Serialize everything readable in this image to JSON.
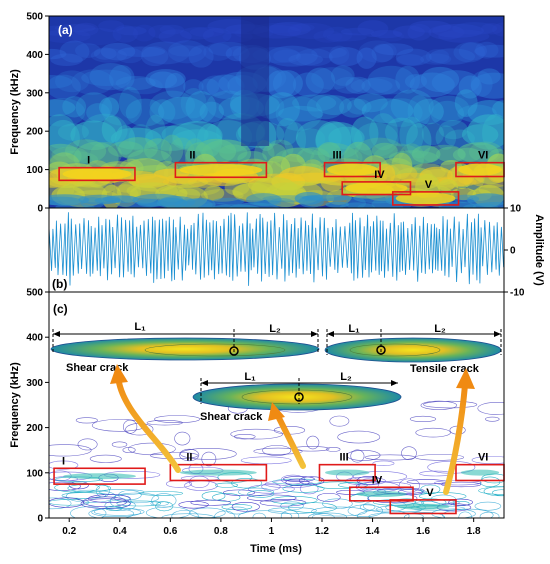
{
  "chart_data": [
    {
      "type": "heatmap",
      "panel_label": "(a)",
      "ylabel": "Frequency (kHz)",
      "ylim": [
        0,
        500
      ],
      "yticks": [
        "0",
        "100",
        "200",
        "300",
        "400",
        "500"
      ],
      "xlim": [
        0.12,
        1.92
      ],
      "regions": [
        {
          "label": "I",
          "x0": 0.16,
          "x1": 0.46,
          "f0": 72,
          "f1": 105
        },
        {
          "label": "II",
          "x0": 0.62,
          "x1": 0.98,
          "f0": 80,
          "f1": 118
        },
        {
          "label": "III",
          "x0": 1.21,
          "x1": 1.43,
          "f0": 82,
          "f1": 118
        },
        {
          "label": "IV",
          "x0": 1.28,
          "x1": 1.55,
          "f0": 35,
          "f1": 68
        },
        {
          "label": "V",
          "x0": 1.48,
          "x1": 1.74,
          "f0": 8,
          "f1": 42
        },
        {
          "label": "VI",
          "x0": 1.73,
          "x1": 1.92,
          "f0": 82,
          "f1": 118
        }
      ],
      "colors": {
        "box": "#e01a1a",
        "low": "#1e2f9e",
        "high": "#f2c80f"
      }
    },
    {
      "type": "line",
      "panel_label": "(b)",
      "ylabel": "Amplitude (V)",
      "ylim": [
        -10,
        10
      ],
      "yticks": [
        "10",
        "0",
        "-10"
      ],
      "xlim": [
        0.12,
        1.92
      ],
      "series": [
        {
          "color": "#1a8fd1"
        }
      ]
    },
    {
      "type": "contour",
      "panel_label": "(c)",
      "xlabel": "Time (ms)",
      "ylabel": "Frequency (kHz)",
      "xlim": [
        0.12,
        1.92
      ],
      "ylim": [
        0,
        500
      ],
      "xticks": [
        "0.2",
        "0.4",
        "0.6",
        "0.8",
        "1",
        "1.2",
        "1.4",
        "1.6",
        "1.8"
      ],
      "yticks": [
        "0",
        "100",
        "200",
        "300",
        "400",
        "500"
      ],
      "regions": [
        {
          "label": "I",
          "x0": 0.14,
          "x1": 0.5,
          "f0": 75,
          "f1": 110
        },
        {
          "label": "II",
          "x0": 0.6,
          "x1": 0.98,
          "f0": 83,
          "f1": 118
        },
        {
          "label": "III",
          "x0": 1.19,
          "x1": 1.41,
          "f0": 83,
          "f1": 118
        },
        {
          "label": "IV",
          "x0": 1.31,
          "x1": 1.56,
          "f0": 38,
          "f1": 68
        },
        {
          "label": "V",
          "x0": 1.47,
          "x1": 1.73,
          "f0": 10,
          "f1": 40
        },
        {
          "label": "VI",
          "x0": 1.73,
          "x1": 1.92,
          "f0": 83,
          "f1": 118
        }
      ],
      "insets": [
        {
          "caption": "Shear crack",
          "l1": "L₁",
          "l2": "L₂",
          "center_label": "O"
        },
        {
          "caption": "Shear crack",
          "l1": "L₁",
          "l2": "L₂",
          "center_label": "O"
        },
        {
          "caption": "Tensile crack",
          "l1": "L₁",
          "l2": "L₂",
          "center_label": "O"
        }
      ],
      "colors": {
        "box": "#e01a1a",
        "arrow": "#f0a21a",
        "contour": "#4a3fc8"
      }
    }
  ]
}
